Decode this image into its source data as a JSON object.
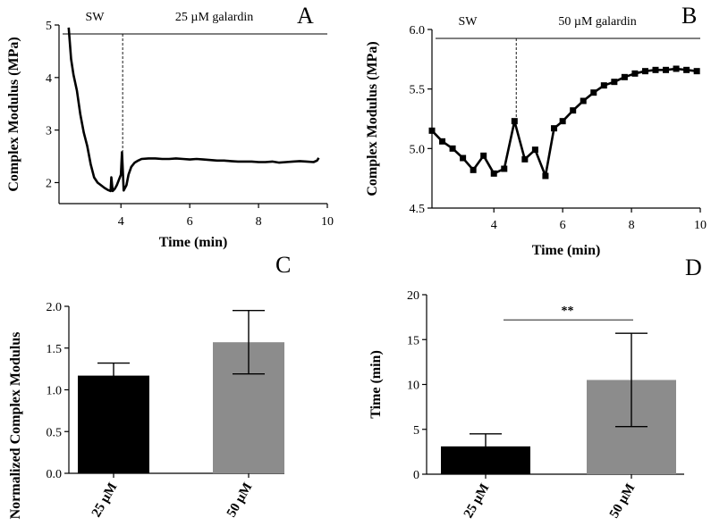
{
  "panels": {
    "A": {
      "letter": "A"
    },
    "B": {
      "letter": "B"
    },
    "C": {
      "letter": "C"
    },
    "D": {
      "letter": "D"
    }
  },
  "chart_data": [
    {
      "id": "A",
      "type": "line",
      "ylabel": "Complex Modulus (MPa)",
      "xlabel": "Time (min)",
      "xlim": [
        2.2,
        10
      ],
      "ylim": [
        1.6,
        5
      ],
      "xticks": [
        4,
        6,
        8,
        10
      ],
      "yticks": [
        2,
        3,
        4,
        5
      ],
      "grid": false,
      "annotations": {
        "left": "SW",
        "right": "25 µM galardin",
        "divider_x": 4.05
      },
      "series": [
        {
          "marker": "none",
          "x": [
            2.48,
            2.55,
            2.62,
            2.72,
            2.82,
            2.92,
            3.02,
            3.12,
            3.22,
            3.32,
            3.42,
            3.52,
            3.62,
            3.7,
            3.72,
            3.76,
            3.82,
            3.88,
            3.94,
            4.0,
            4.03,
            4.08,
            4.16,
            4.22,
            4.3,
            4.4,
            4.5,
            4.6,
            4.8,
            5.0,
            5.2,
            5.4,
            5.6,
            5.8,
            6.0,
            6.2,
            6.4,
            6.6,
            6.8,
            7.0,
            7.2,
            7.4,
            7.6,
            7.8,
            8.0,
            8.2,
            8.4,
            8.6,
            8.8,
            9.0,
            9.2,
            9.4,
            9.6,
            9.7,
            9.75
          ],
          "y": [
            4.95,
            4.35,
            4.05,
            3.75,
            3.3,
            2.95,
            2.7,
            2.35,
            2.1,
            2.0,
            1.95,
            1.9,
            1.86,
            1.84,
            2.1,
            1.84,
            1.88,
            1.95,
            2.05,
            2.15,
            2.58,
            1.85,
            1.95,
            2.15,
            2.3,
            2.38,
            2.42,
            2.45,
            2.46,
            2.46,
            2.45,
            2.45,
            2.46,
            2.45,
            2.44,
            2.45,
            2.44,
            2.43,
            2.42,
            2.42,
            2.41,
            2.4,
            2.4,
            2.4,
            2.39,
            2.39,
            2.4,
            2.38,
            2.39,
            2.4,
            2.41,
            2.4,
            2.39,
            2.42,
            2.47
          ]
        }
      ]
    },
    {
      "id": "B",
      "type": "line",
      "ylabel": "Complex Modulus (MPa)",
      "xlabel": "Time (min)",
      "xlim": [
        2.2,
        10
      ],
      "ylim": [
        4.5,
        6.0
      ],
      "xticks": [
        4,
        6,
        8,
        10
      ],
      "yticks": [
        4.5,
        5.0,
        5.5,
        6.0
      ],
      "grid": false,
      "annotations": {
        "left": "SW",
        "right": "50 µM galardin",
        "divider_x": 4.65
      },
      "series": [
        {
          "marker": "square",
          "x": [
            2.2,
            2.5,
            2.8,
            3.1,
            3.4,
            3.7,
            4.0,
            4.3,
            4.6,
            4.9,
            5.2,
            5.5,
            5.75,
            6.0,
            6.3,
            6.6,
            6.9,
            7.2,
            7.5,
            7.8,
            8.1,
            8.4,
            8.7,
            9.0,
            9.3,
            9.6,
            9.9
          ],
          "y": [
            5.15,
            5.06,
            5.0,
            4.92,
            4.82,
            4.94,
            4.79,
            4.83,
            5.23,
            4.91,
            4.99,
            4.77,
            5.17,
            5.23,
            5.32,
            5.4,
            5.47,
            5.53,
            5.56,
            5.6,
            5.63,
            5.65,
            5.66,
            5.66,
            5.67,
            5.66,
            5.65
          ]
        }
      ]
    },
    {
      "id": "C",
      "type": "bar",
      "ylabel": "Normalized Complex Modulus",
      "categories": [
        "25 µM",
        "50 µM"
      ],
      "values": [
        1.17,
        1.57
      ],
      "errors": [
        0.15,
        0.38
      ],
      "colors": [
        "#000000",
        "#8c8c8c"
      ],
      "ylim": [
        0,
        2.0
      ],
      "yticks": [
        0.0,
        0.5,
        1.0,
        1.5,
        2.0
      ]
    },
    {
      "id": "D",
      "type": "bar",
      "ylabel": "Time (min)",
      "categories": [
        "25 µM",
        "50 µM"
      ],
      "values": [
        3.1,
        10.5
      ],
      "errors": [
        1.4,
        5.2
      ],
      "colors": [
        "#000000",
        "#8c8c8c"
      ],
      "ylim": [
        0,
        20
      ],
      "yticks": [
        0,
        5,
        10,
        15,
        20
      ],
      "significance": "**"
    }
  ]
}
